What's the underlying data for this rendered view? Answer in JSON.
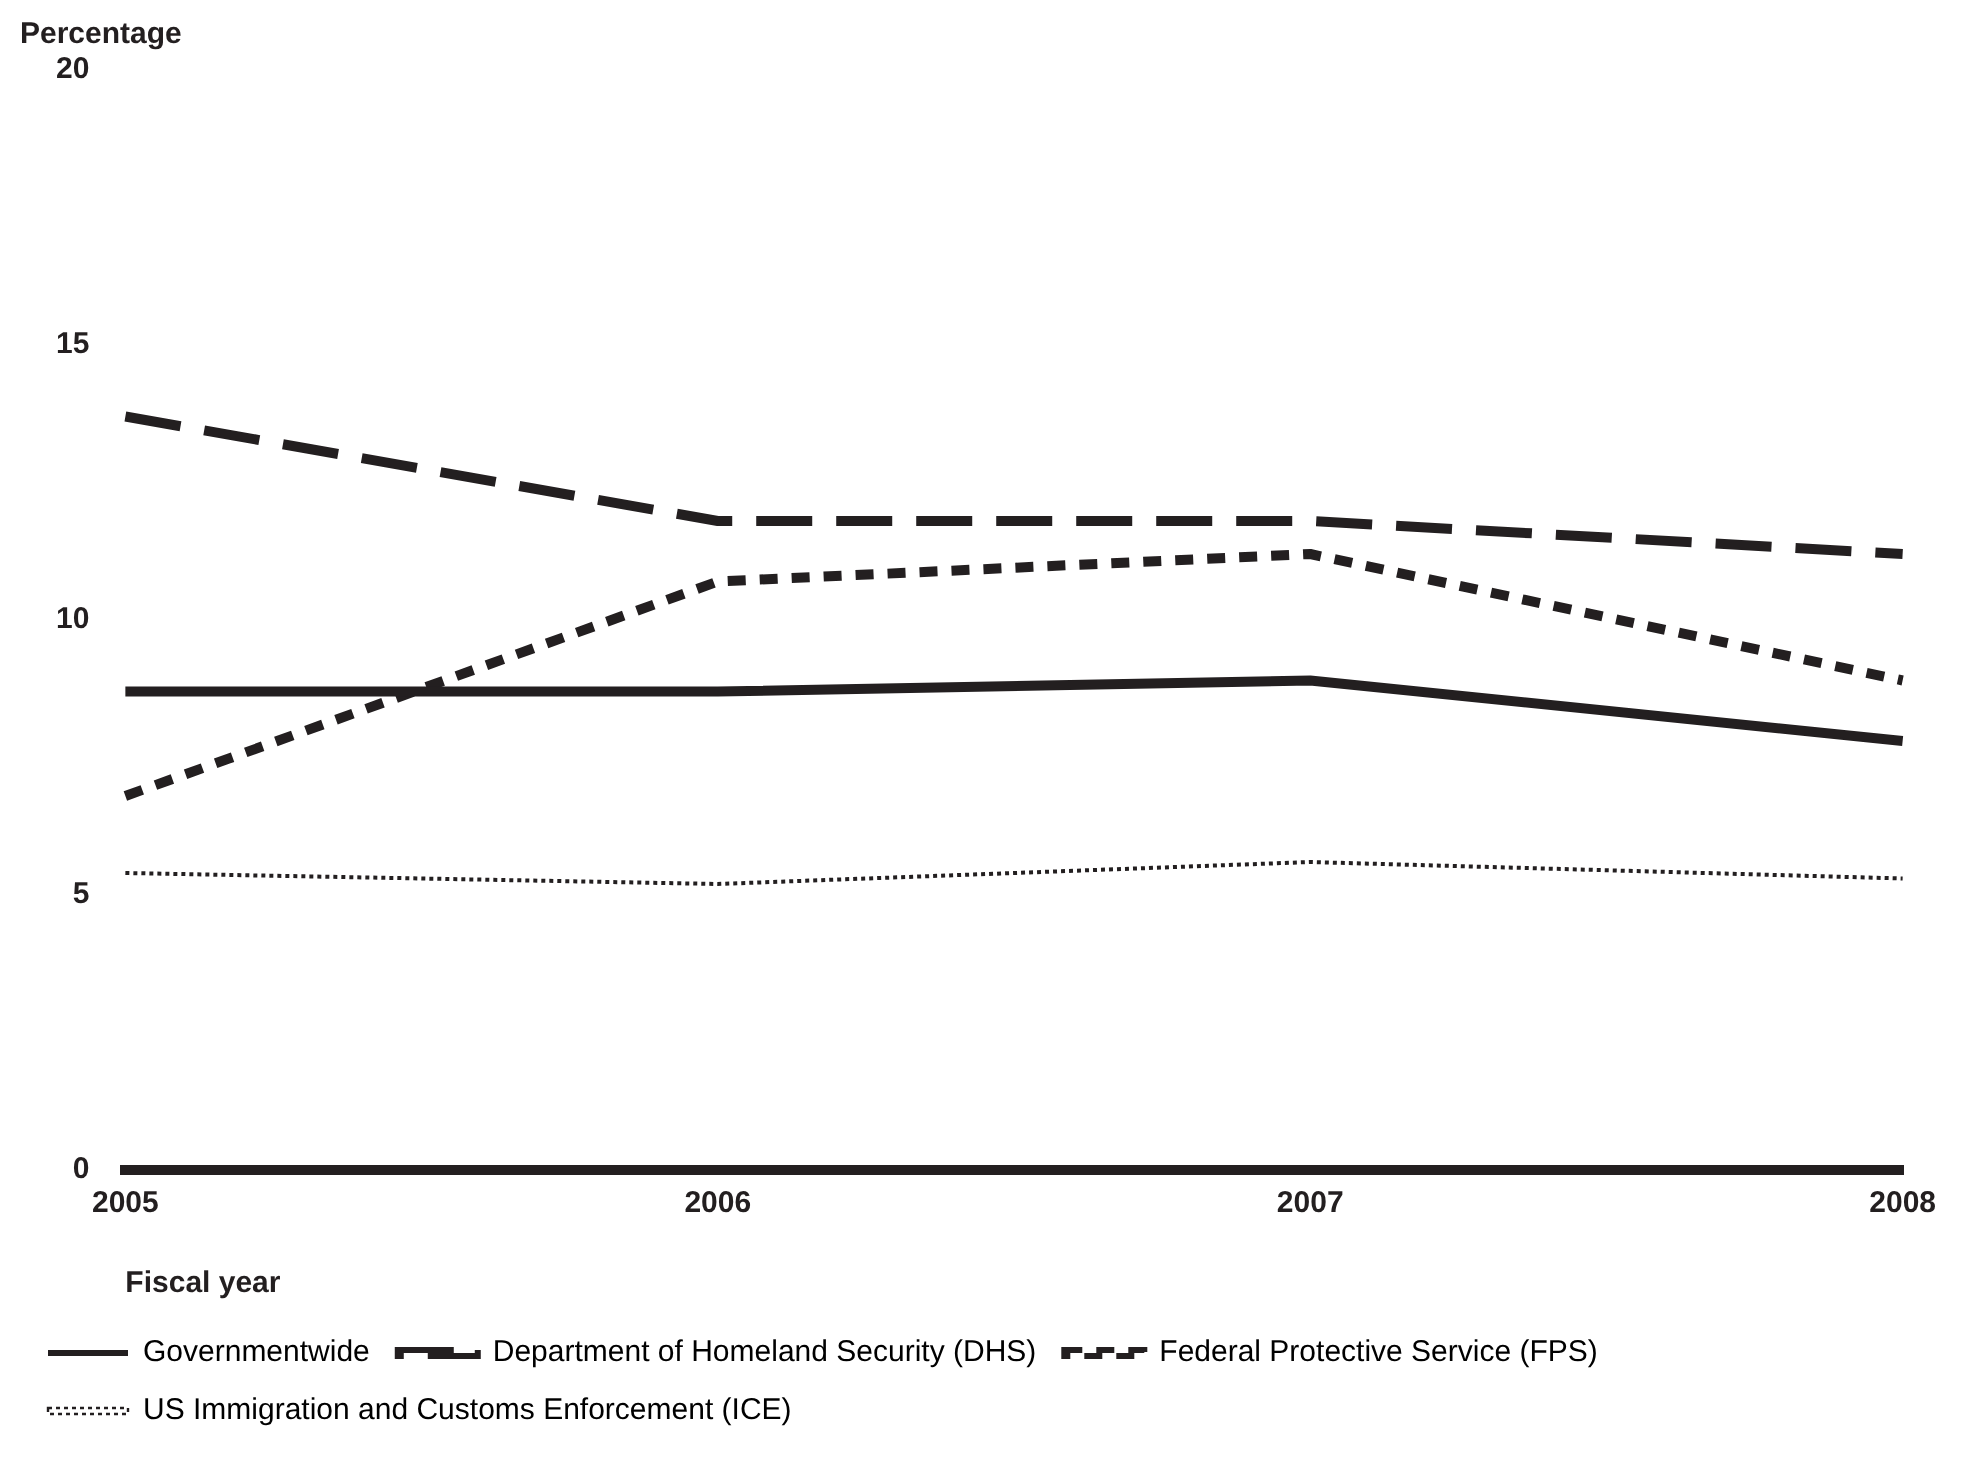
{
  "chart_data": {
    "type": "line",
    "xlabel": "Fiscal year",
    "ylabel": "Percentage",
    "categories": [
      "2005",
      "2006",
      "2007",
      "2008"
    ],
    "series": [
      {
        "name": "Governmentwide",
        "color": "#231f20",
        "line_style": "solid",
        "values": [
          8.7,
          8.7,
          8.9,
          7.8
        ]
      },
      {
        "name": "Department of Homeland Security (DHS)",
        "color": "#231f20",
        "line_style": "dashed",
        "values": [
          13.7,
          11.8,
          11.8,
          11.2
        ]
      },
      {
        "name": "Federal Protective Service (FPS)",
        "color": "#231f20",
        "line_style": "dashed",
        "values": [
          6.8,
          10.7,
          11.2,
          8.9
        ]
      },
      {
        "name": "US Immigration and Customs Enforcement (ICE)",
        "color": "#231f20",
        "line_style": "dotted",
        "values": [
          5.4,
          5.2,
          5.6,
          5.3
        ]
      }
    ],
    "ylim": [
      0,
      20
    ],
    "yticks": [
      0,
      5,
      10,
      15,
      20
    ],
    "grid": false,
    "legend": "bottom",
    "marker": "none"
  }
}
